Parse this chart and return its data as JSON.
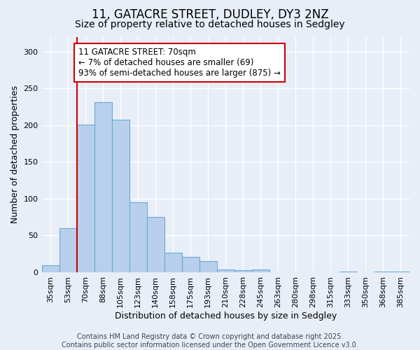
{
  "title1": "11, GATACRE STREET, DUDLEY, DY3 2NZ",
  "title2": "Size of property relative to detached houses in Sedgley",
  "xlabel": "Distribution of detached houses by size in Sedgley",
  "ylabel": "Number of detached properties",
  "categories": [
    "35sqm",
    "53sqm",
    "70sqm",
    "88sqm",
    "105sqm",
    "123sqm",
    "140sqm",
    "158sqm",
    "175sqm",
    "193sqm",
    "210sqm",
    "228sqm",
    "245sqm",
    "263sqm",
    "280sqm",
    "298sqm",
    "315sqm",
    "333sqm",
    "350sqm",
    "368sqm",
    "385sqm"
  ],
  "values": [
    9,
    60,
    201,
    231,
    207,
    95,
    75,
    27,
    21,
    15,
    4,
    3,
    4,
    0,
    0,
    0,
    0,
    1,
    0,
    1,
    1
  ],
  "bar_color": "#b8d0eb",
  "bar_edge_color": "#6aaad4",
  "highlight_line_index": 2,
  "highlight_color": "#cc0000",
  "annotation_text": "11 GATACRE STREET: 70sqm\n← 7% of detached houses are smaller (69)\n93% of semi-detached houses are larger (875) →",
  "annotation_box_facecolor": "#ffffff",
  "annotation_box_edgecolor": "#cc0000",
  "ylim": [
    0,
    320
  ],
  "yticks": [
    0,
    50,
    100,
    150,
    200,
    250,
    300
  ],
  "background_color": "#e8eef8",
  "footer_text": "Contains HM Land Registry data © Crown copyright and database right 2025.\nContains public sector information licensed under the Open Government Licence v3.0.",
  "title_fontsize": 12,
  "subtitle_fontsize": 10,
  "axis_label_fontsize": 9,
  "tick_fontsize": 8,
  "annotation_fontsize": 8.5,
  "footer_fontsize": 7
}
